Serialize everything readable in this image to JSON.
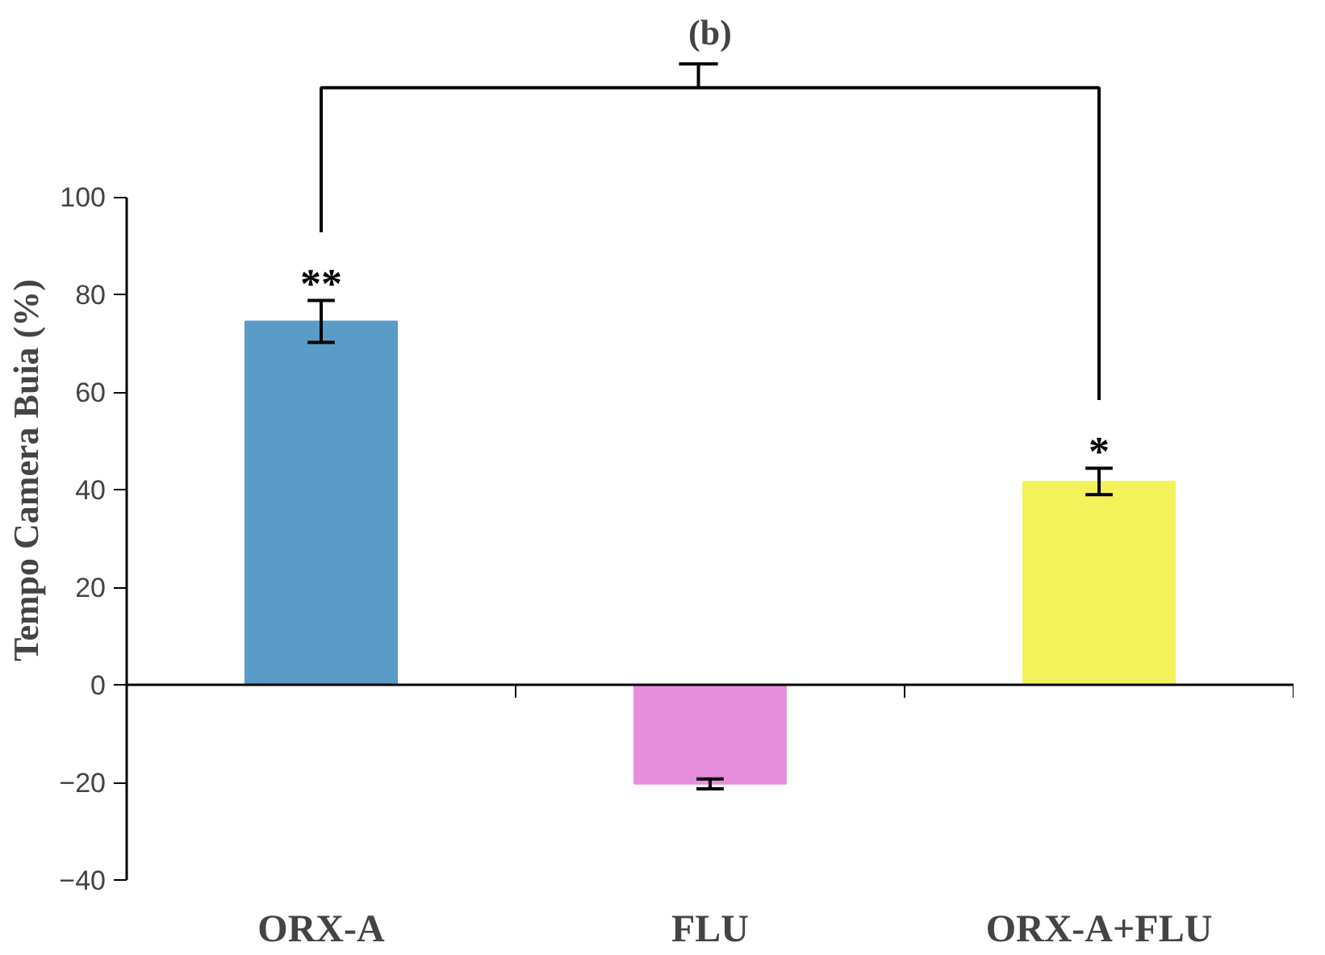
{
  "chart_data": {
    "type": "bar",
    "title": "(b)",
    "ylabel": "Tempo Camera Buia (%)",
    "categories": [
      "ORX-A",
      "FLU",
      "ORX-A+FLU"
    ],
    "values": [
      74.5,
      -20.3,
      41.7
    ],
    "colors": [
      "#5b9bc8",
      "#e58fdc",
      "#f4f25a"
    ],
    "errors": [
      4.3,
      1,
      2.7
    ],
    "ylim": [
      -40,
      100
    ],
    "yticks": [
      -40,
      -20,
      0,
      20,
      40,
      60,
      80,
      100
    ],
    "annotations": [
      {
        "text": "**",
        "x": "ORX-A",
        "y": 78.8
      },
      {
        "text": "*",
        "x": "ORX-A+FLU",
        "y": 44.4
      }
    ]
  }
}
